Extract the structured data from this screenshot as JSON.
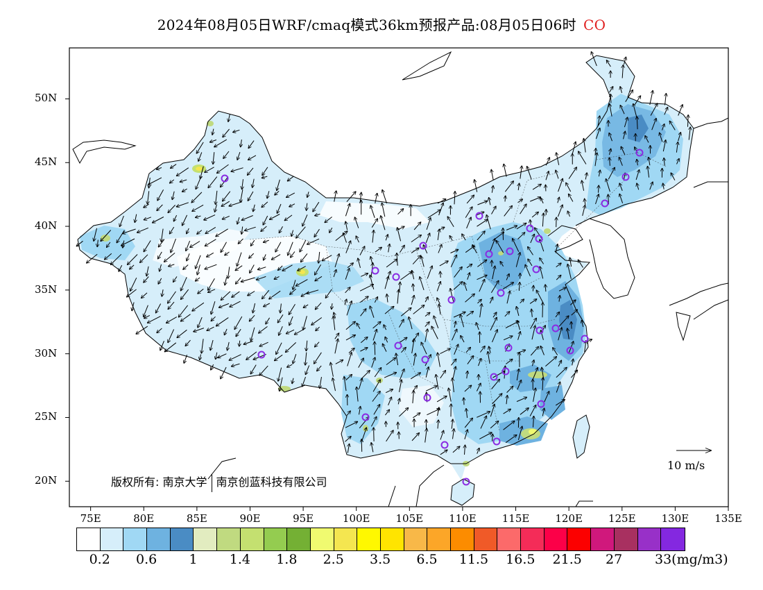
{
  "header": {
    "title": "2024年08月05日WRF/cmaq模式36km预报产品:08月05日06时",
    "species": "CO",
    "species_color": "#e02020"
  },
  "axes": {
    "lat_labels": [
      "50N",
      "45N",
      "40N",
      "35N",
      "30N",
      "25N",
      "20N"
    ],
    "lon_labels": [
      "75E",
      "80E",
      "85E",
      "90E",
      "95E",
      "100E",
      "105E",
      "110E",
      "115E",
      "120E",
      "125E",
      "130E",
      "135E"
    ],
    "lon_range": [
      73,
      135
    ],
    "lat_range": [
      18,
      54
    ]
  },
  "annotations": {
    "copyright_prefix": "版权所有:",
    "copyright_org1": "南京大学",
    "copyright_org2": "南京创蓝科技有限公司",
    "reference_vector": "10 m/s"
  },
  "legend": {
    "colors": [
      "#ffffff",
      "#d6eefa",
      "#a0d8f4",
      "#6eb2e0",
      "#4a8cc4",
      "#e2ecc0",
      "#c0da80",
      "#c4e070",
      "#94cc50",
      "#74b034",
      "#f0fa70",
      "#f4e650",
      "#fff800",
      "#ffe400",
      "#f8b848",
      "#fca628",
      "#fc8c00",
      "#f05a28",
      "#fc6a6a",
      "#f42c58",
      "#fc0048",
      "#fc0000",
      "#d0187c",
      "#a83060",
      "#9830c8",
      "#8428e0"
    ],
    "tick_labels": [
      "0.2",
      "0.6",
      "1",
      "1.4",
      "1.8",
      "2.5",
      "3.5",
      "6.5",
      "11.5",
      "16.5",
      "21.5",
      "27",
      "33"
    ],
    "unit": "(mg/m3)"
  }
}
